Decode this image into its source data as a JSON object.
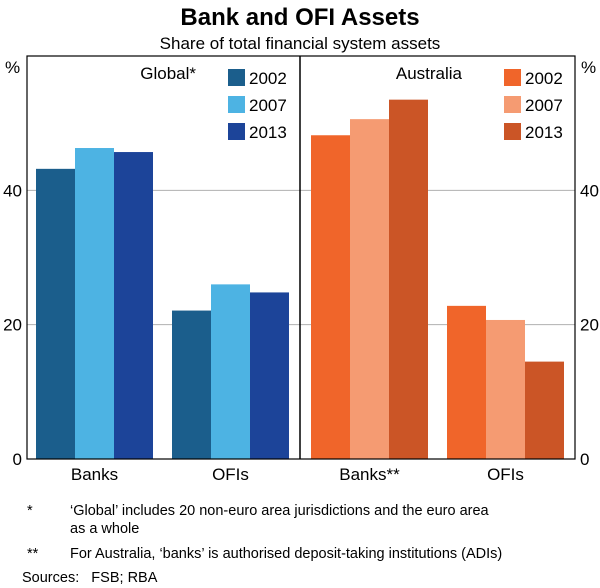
{
  "title": "Bank and OFI Assets",
  "subtitle": "Share of total financial system assets",
  "chart_data": [
    {
      "type": "bar",
      "panel": "Global*",
      "categories": [
        "Banks",
        "OFIs"
      ],
      "series": [
        {
          "name": "2002",
          "color": "#1b5e8c",
          "values": [
            43.2,
            22.1
          ]
        },
        {
          "name": "2007",
          "color": "#4db3e3",
          "values": [
            46.3,
            26.0
          ]
        },
        {
          "name": "2013",
          "color": "#1c4499",
          "values": [
            45.7,
            24.8
          ]
        }
      ],
      "ylabel": "%",
      "ylim": [
        0,
        60
      ],
      "yticks": [
        0,
        20,
        40
      ]
    },
    {
      "type": "bar",
      "panel": "Australia",
      "categories": [
        "Banks**",
        "OFIs"
      ],
      "series": [
        {
          "name": "2002",
          "color": "#f0652a",
          "values": [
            48.2,
            22.8
          ]
        },
        {
          "name": "2007",
          "color": "#f59b72",
          "values": [
            50.6,
            20.7
          ]
        },
        {
          "name": "2013",
          "color": "#cb5526",
          "values": [
            53.5,
            14.5
          ]
        }
      ],
      "ylabel": "%",
      "ylim": [
        0,
        60
      ],
      "yticks": [
        0,
        20,
        40
      ]
    }
  ],
  "notes": [
    {
      "mark": "*",
      "text": "‘Global’ includes 20 non-euro area jurisdictions and the euro area",
      "text2": "as a whole"
    },
    {
      "mark": "**",
      "text": "For Australia, ‘banks’ is authorised deposit-taking institutions (ADIs)"
    }
  ],
  "sources": "Sources:   FSB; RBA"
}
